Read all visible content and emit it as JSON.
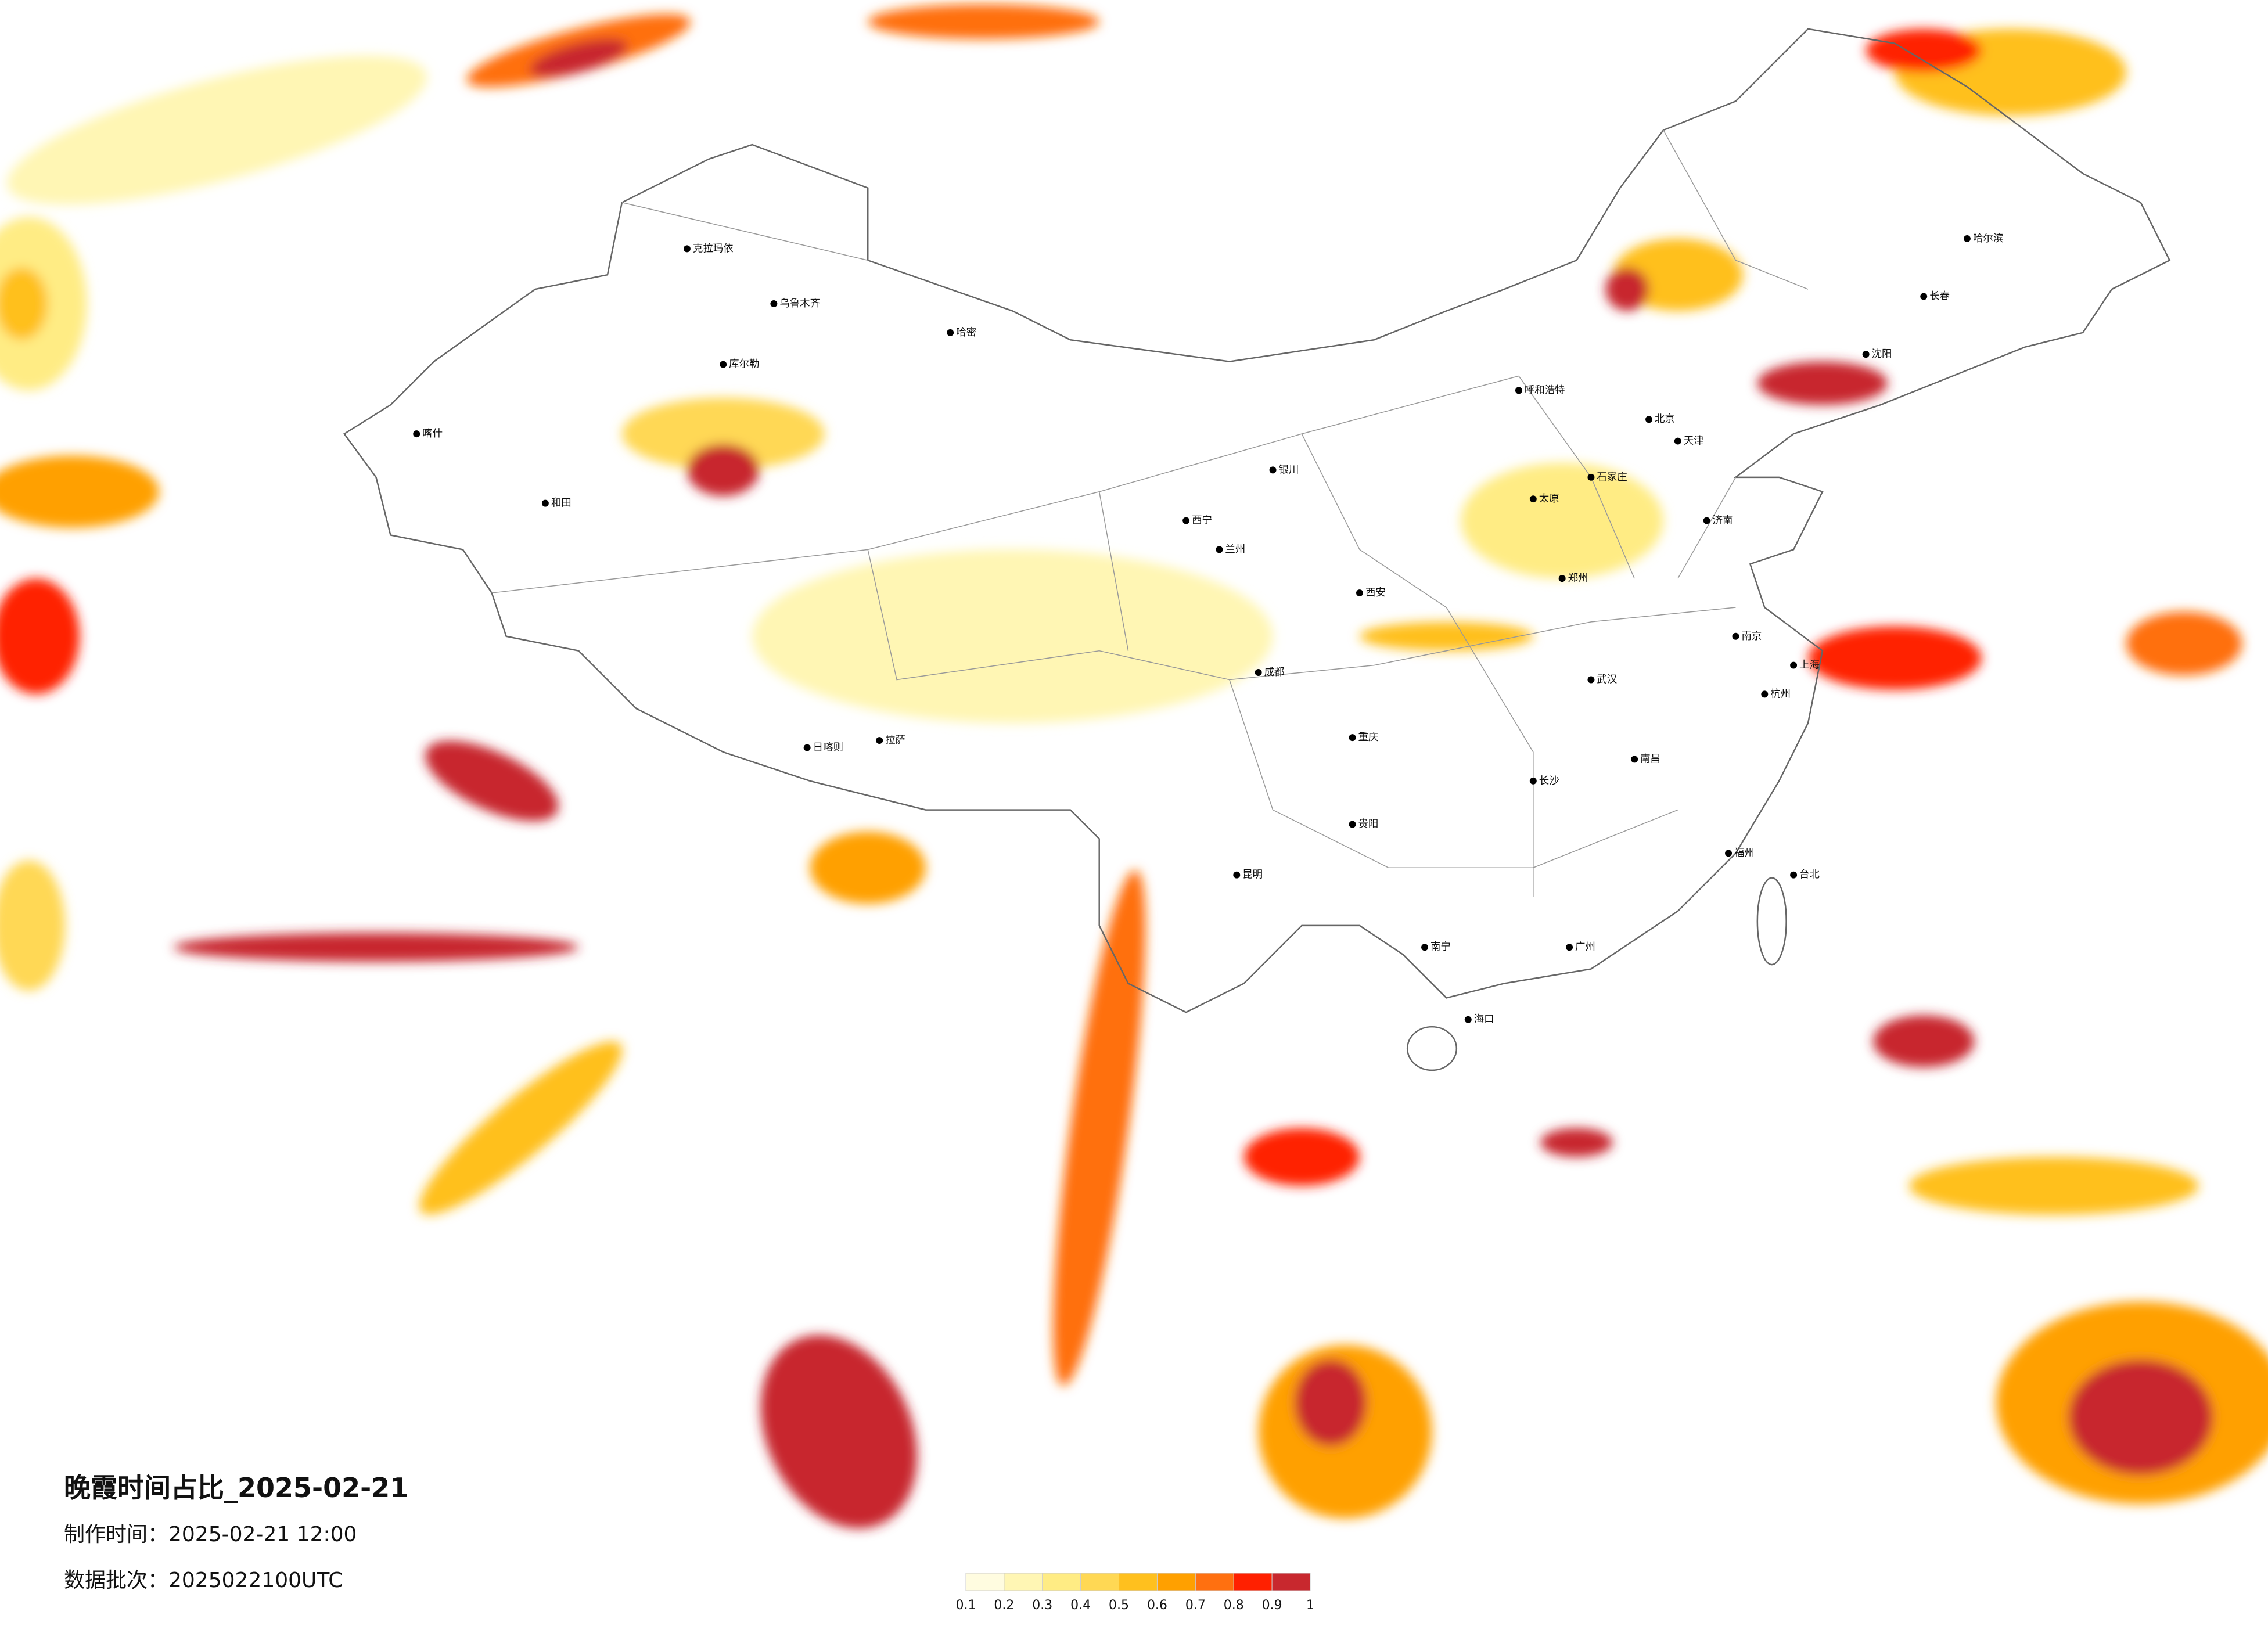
{
  "title": "晚霞时间占比_2025-02-21",
  "made_time": "制作时间：2025-02-21 12:00",
  "batch": "数据批次：2025022100UTC",
  "legend": {
    "ticks": [
      "0.1",
      "0.2",
      "0.3",
      "0.4",
      "0.5",
      "0.6",
      "0.7",
      "0.8",
      "0.9",
      "1"
    ],
    "colors": [
      "#fffce0",
      "#fff6b4",
      "#ffec84",
      "#ffd854",
      "#ffc01e",
      "#ffa000",
      "#ff7010",
      "#ff2000",
      "#c8282e"
    ]
  },
  "cities": [
    "克拉玛依",
    "乌鲁木齐",
    "哈密",
    "库尔勒",
    "喀什",
    "和田",
    "拉萨",
    "日喀则",
    "西宁",
    "兰州",
    "银川",
    "呼和浩特",
    "北京",
    "天津",
    "石家庄",
    "太原",
    "西安",
    "郑州",
    "济南",
    "南京",
    "上海",
    "杭州",
    "武汉",
    "长沙",
    "南昌",
    "福州",
    "广州",
    "南宁",
    "海口",
    "昆明",
    "贵阳",
    "成都",
    "重庆",
    "哈尔滨",
    "长春",
    "沈阳",
    "台北"
  ]
}
